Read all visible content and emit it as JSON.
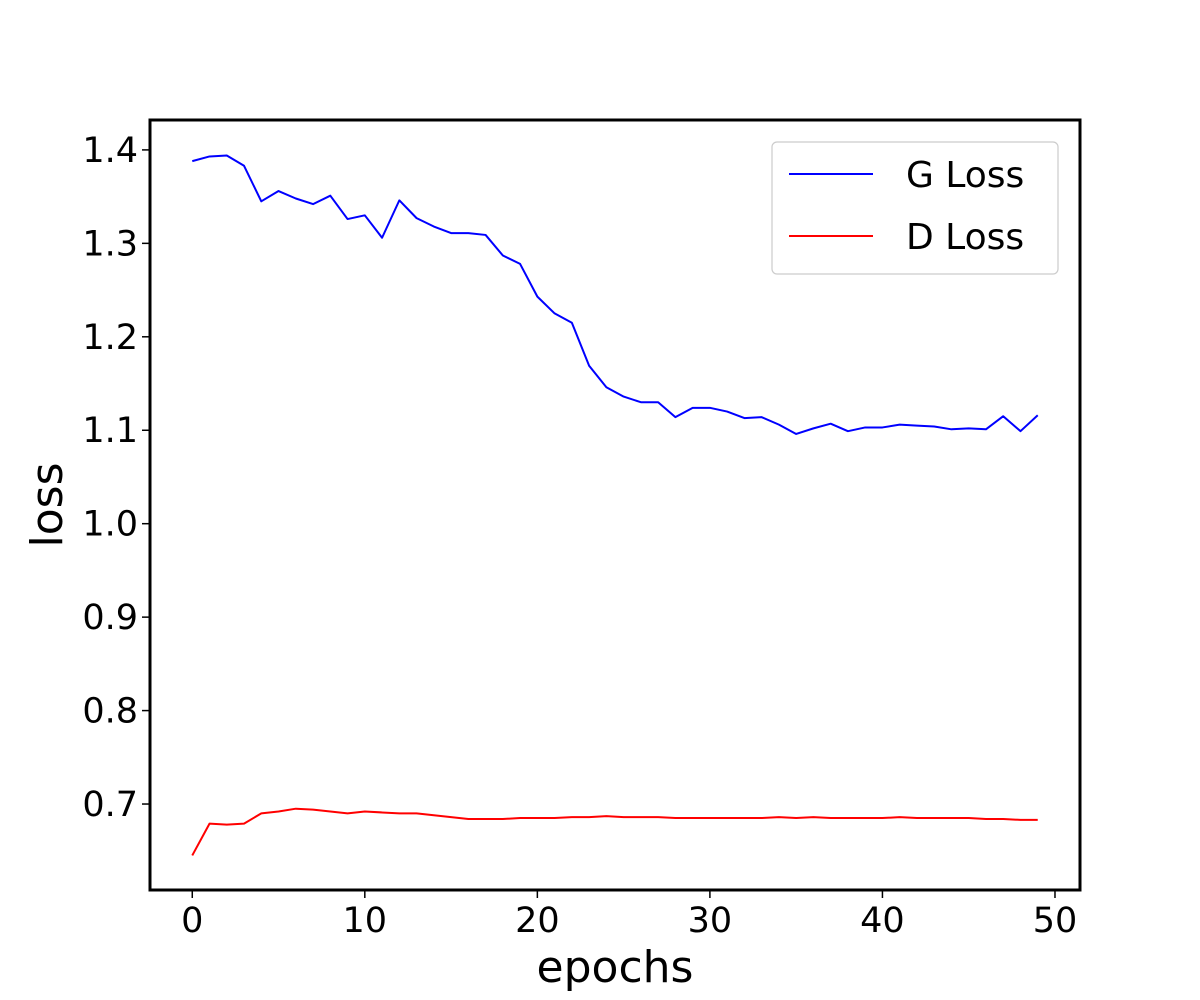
{
  "chart_data": {
    "type": "line",
    "title": "",
    "xlabel": "epochs",
    "ylabel": "loss",
    "xlim": [
      -2.45,
      51.45
    ],
    "ylim": [
      0.608,
      1.432
    ],
    "xticks": [
      0,
      10,
      20,
      30,
      40,
      50
    ],
    "yticks": [
      0.7,
      0.8,
      0.9,
      1.0,
      1.1,
      1.2,
      1.3,
      1.4
    ],
    "ytick_labels": [
      "0.7",
      "0.8",
      "0.9",
      "1.0",
      "1.1",
      "1.2",
      "1.3",
      "1.4"
    ],
    "grid": false,
    "legend_position": "top-right",
    "x": [
      0,
      1,
      2,
      3,
      4,
      5,
      6,
      7,
      8,
      9,
      10,
      11,
      12,
      13,
      14,
      15,
      16,
      17,
      18,
      19,
      20,
      21,
      22,
      23,
      24,
      25,
      26,
      27,
      28,
      29,
      30,
      31,
      32,
      33,
      34,
      35,
      36,
      37,
      38,
      39,
      40,
      41,
      42,
      43,
      44,
      45,
      46,
      47,
      48,
      49
    ],
    "series": [
      {
        "name": "G Loss",
        "color": "#0000ff",
        "values": [
          1.388,
          1.393,
          1.394,
          1.383,
          1.345,
          1.356,
          1.348,
          1.342,
          1.351,
          1.326,
          1.33,
          1.306,
          1.346,
          1.327,
          1.318,
          1.311,
          1.311,
          1.309,
          1.287,
          1.278,
          1.243,
          1.225,
          1.215,
          1.169,
          1.146,
          1.136,
          1.13,
          1.13,
          1.114,
          1.124,
          1.124,
          1.12,
          1.113,
          1.114,
          1.106,
          1.096,
          1.102,
          1.107,
          1.099,
          1.103,
          1.103,
          1.106,
          1.105,
          1.104,
          1.101,
          1.102,
          1.101,
          1.115,
          1.099,
          1.116
        ]
      },
      {
        "name": "D Loss",
        "color": "#ff0000",
        "values": [
          0.645,
          0.679,
          0.678,
          0.679,
          0.69,
          0.692,
          0.695,
          0.694,
          0.692,
          0.69,
          0.692,
          0.691,
          0.69,
          0.69,
          0.688,
          0.686,
          0.684,
          0.684,
          0.684,
          0.685,
          0.685,
          0.685,
          0.686,
          0.686,
          0.687,
          0.686,
          0.686,
          0.686,
          0.685,
          0.685,
          0.685,
          0.685,
          0.685,
          0.685,
          0.686,
          0.685,
          0.686,
          0.685,
          0.685,
          0.685,
          0.685,
          0.686,
          0.685,
          0.685,
          0.685,
          0.685,
          0.684,
          0.684,
          0.683,
          0.683
        ]
      }
    ]
  }
}
